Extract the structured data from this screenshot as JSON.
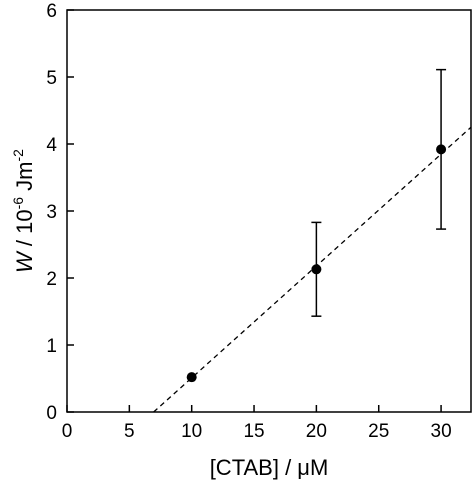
{
  "chart_data": {
    "type": "scatter",
    "xlabel": "[CTAB] / μM",
    "ylabel": {
      "symbol": "W",
      "text1": " / 10",
      "exp1": "-6",
      "text2": " Jm",
      "exp2": "-2"
    },
    "xlim": [
      0,
      32.4
    ],
    "ylim": [
      0,
      6
    ],
    "xticks": [
      0,
      5,
      10,
      15,
      20,
      25,
      30
    ],
    "yticks": [
      0,
      1,
      2,
      3,
      4,
      5,
      6
    ],
    "series": [
      {
        "color": "#000000",
        "x": [
          10,
          20,
          30
        ],
        "values": [
          0.52,
          2.13,
          3.92
        ],
        "errors": [
          null,
          0.7,
          1.19
        ]
      }
    ],
    "fit": {
      "color": "#000000",
      "x": [
        6.95,
        32.4
      ],
      "values": [
        0,
        4.25
      ]
    }
  }
}
